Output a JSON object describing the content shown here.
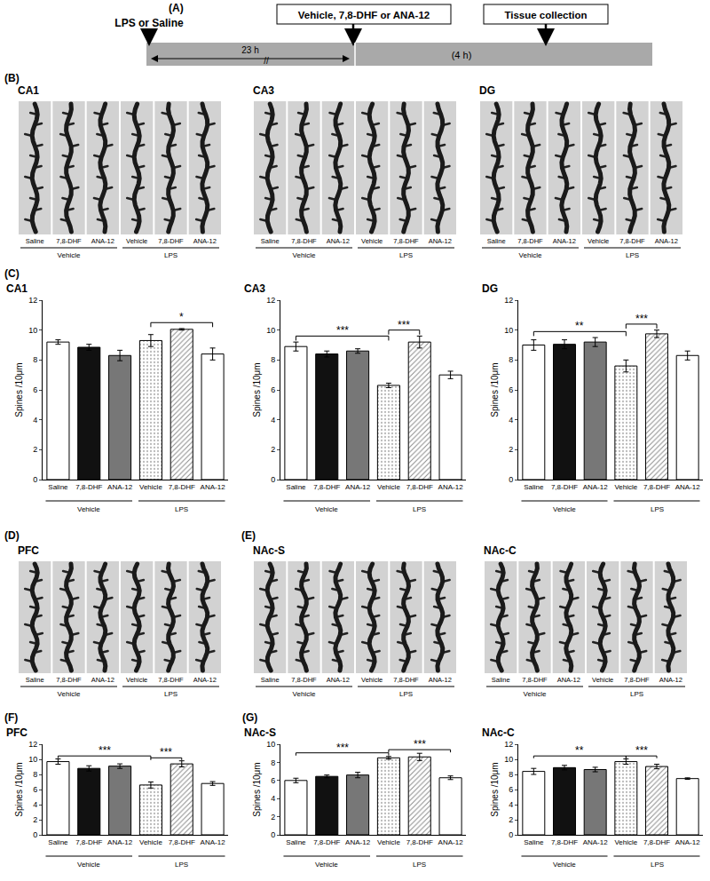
{
  "figure": {
    "timeline": {
      "panel": "(A)",
      "start": "LPS or Saline",
      "treatment": "Vehicle, 7,8-DHF or ANA-12",
      "end": "Tissue collection",
      "first_interval": "23 h",
      "break_mark": "//",
      "second_interval": "(4 h)"
    },
    "image_panels": [
      {
        "panel": "(B)",
        "regions": [
          {
            "title": "CA1",
            "labels": [
              "Saline",
              "7,8-DHF",
              "ANA-12",
              "Vehicle",
              "7,8-DHF",
              "ANA-12"
            ],
            "groups": [
              "Vehicle",
              "LPS"
            ]
          },
          {
            "title": "CA3",
            "labels": [
              "Saline",
              "7,8-DHF",
              "ANA-12",
              "Vehicle",
              "7,8-DHF",
              "ANA-12"
            ],
            "groups": [
              "Vehicle",
              "LPS"
            ]
          },
          {
            "title": "DG",
            "labels": [
              "Saline",
              "7,8-DHF",
              "ANA-12",
              "Vehicle",
              "7,8-DHF",
              "ANA-12"
            ],
            "groups": [
              "Vehicle",
              "LPS"
            ]
          }
        ]
      },
      {
        "panel": "(D)",
        "regions": [
          {
            "title": "PFC",
            "labels": [
              "Saline",
              "7,8-DHF",
              "ANA-12",
              "Vehicle",
              "7,8-DHF",
              "ANA-12"
            ],
            "groups": [
              "Vehicle",
              "LPS"
            ]
          }
        ]
      },
      {
        "panel": "(E)",
        "regions": [
          {
            "title": "NAc-S",
            "labels": [
              "Saline",
              "7,8-DHF",
              "ANA-12",
              "Vehicle",
              "7,8-DHF",
              "ANA-12"
            ],
            "groups": [
              "Vehicle",
              "LPS"
            ]
          },
          {
            "title": "NAc-C",
            "labels": [
              "Saline",
              "7,8-DHF",
              "ANA-12",
              "Vehicle",
              "7,8-DHF",
              "ANA-12"
            ],
            "groups": [
              "Vehicle",
              "LPS"
            ]
          }
        ]
      }
    ]
  },
  "chart_data": [
    {
      "type": "bar",
      "panel": "(C)",
      "title": "CA1",
      "ylabel": "Spines /10μm",
      "categories": [
        "Saline",
        "7,8-DHF",
        "ANA-12",
        "Vehicle",
        "7,8-DHF",
        "ANA-12"
      ],
      "groups": [
        {
          "label": "Vehicle",
          "from": 0,
          "to": 2
        },
        {
          "label": "LPS",
          "from": 3,
          "to": 5
        }
      ],
      "values": [
        9.2,
        8.85,
        8.3,
        9.3,
        10.05,
        8.4
      ],
      "errors": [
        0.15,
        0.2,
        0.35,
        0.4,
        0.05,
        0.4
      ],
      "colors": [
        "#ffffff",
        "#111111",
        "#777777",
        "#bbbbbb",
        "#8c8c8c",
        "#ffffff"
      ],
      "ylim": [
        0,
        12
      ],
      "yticks": [
        0,
        2,
        4,
        6,
        8,
        10,
        12
      ],
      "significance": [
        {
          "from": 3,
          "to": 5,
          "label": "*"
        }
      ]
    },
    {
      "type": "bar",
      "title": "CA3",
      "ylabel": "Spines /10μm",
      "categories": [
        "Saline",
        "7,8-DHF",
        "ANA-12",
        "Vehicle",
        "7,8-DHF",
        "ANA-12"
      ],
      "groups": [
        {
          "label": "Vehicle",
          "from": 0,
          "to": 2
        },
        {
          "label": "LPS",
          "from": 3,
          "to": 5
        }
      ],
      "values": [
        8.9,
        8.4,
        8.6,
        6.3,
        9.2,
        7.0
      ],
      "errors": [
        0.3,
        0.2,
        0.15,
        0.15,
        0.4,
        0.25
      ],
      "colors": [
        "#ffffff",
        "#111111",
        "#777777",
        "#bbbbbb",
        "#8c8c8c",
        "#ffffff"
      ],
      "ylim": [
        0,
        12
      ],
      "yticks": [
        0,
        2,
        4,
        6,
        8,
        10,
        12
      ],
      "significance": [
        {
          "from": 0,
          "to": 3,
          "label": "***"
        },
        {
          "from": 3,
          "to": 4,
          "label": "***"
        }
      ]
    },
    {
      "type": "bar",
      "title": "DG",
      "ylabel": "Spines /10μm",
      "categories": [
        "Saline",
        "7,8-DHF",
        "ANA-12",
        "Vehicle",
        "7,8-DHF",
        "ANA-12"
      ],
      "groups": [
        {
          "label": "Vehicle",
          "from": 0,
          "to": 2
        },
        {
          "label": "LPS",
          "from": 3,
          "to": 5
        }
      ],
      "values": [
        9.0,
        9.05,
        9.2,
        7.6,
        9.75,
        8.3
      ],
      "errors": [
        0.35,
        0.3,
        0.3,
        0.4,
        0.25,
        0.3
      ],
      "colors": [
        "#ffffff",
        "#111111",
        "#777777",
        "#bbbbbb",
        "#8c8c8c",
        "#ffffff"
      ],
      "ylim": [
        0,
        12
      ],
      "yticks": [
        0,
        2,
        4,
        6,
        8,
        10,
        12
      ],
      "significance": [
        {
          "from": 0,
          "to": 3,
          "label": "**"
        },
        {
          "from": 3,
          "to": 4,
          "label": "***"
        }
      ]
    },
    {
      "type": "bar",
      "panel": "(F)",
      "title": "PFC",
      "ylabel": "Spines /10μm",
      "categories": [
        "Saline",
        "7,8-DHF",
        "ANA-12",
        "Vehicle",
        "7,8-DHF",
        "ANA-12"
      ],
      "groups": [
        {
          "label": "Vehicle",
          "from": 0,
          "to": 2
        },
        {
          "label": "LPS",
          "from": 3,
          "to": 5
        }
      ],
      "values": [
        9.7,
        8.8,
        9.1,
        6.6,
        9.4,
        6.8
      ],
      "errors": [
        0.35,
        0.35,
        0.3,
        0.4,
        0.4,
        0.25
      ],
      "colors": [
        "#ffffff",
        "#111111",
        "#777777",
        "#bbbbbb",
        "#8c8c8c",
        "#ffffff"
      ],
      "ylim": [
        0,
        12
      ],
      "yticks": [
        0,
        2,
        4,
        6,
        8,
        10,
        12
      ],
      "significance": [
        {
          "from": 0,
          "to": 3,
          "label": "***"
        },
        {
          "from": 3,
          "to": 4,
          "label": "***"
        }
      ]
    },
    {
      "type": "bar",
      "panel": "(G)",
      "title": "NAc-S",
      "ylabel": "Spines /10μm",
      "categories": [
        "Saline",
        "7,8-DHF",
        "ANA-12",
        "Vehicle",
        "7,8-DHF",
        "ANA-12"
      ],
      "groups": [
        {
          "label": "Vehicle",
          "from": 0,
          "to": 2
        },
        {
          "label": "LPS",
          "from": 3,
          "to": 5
        }
      ],
      "values": [
        6.0,
        6.45,
        6.6,
        8.5,
        8.6,
        6.3
      ],
      "errors": [
        0.25,
        0.15,
        0.3,
        0.15,
        0.4,
        0.2
      ],
      "colors": [
        "#ffffff",
        "#111111",
        "#777777",
        "#bbbbbb",
        "#8c8c8c",
        "#ffffff"
      ],
      "ylim": [
        0,
        10
      ],
      "yticks": [
        0,
        2,
        4,
        6,
        8,
        10
      ],
      "significance": [
        {
          "from": 0,
          "to": 3,
          "label": "***"
        },
        {
          "from": 3,
          "to": 5,
          "label": "***"
        }
      ]
    },
    {
      "type": "bar",
      "title": "NAc-C",
      "ylabel": "Spines /10μm",
      "categories": [
        "Saline",
        "7,8-DHF",
        "ANA-12",
        "Vehicle",
        "7,8-DHF",
        "ANA-12"
      ],
      "groups": [
        {
          "label": "Vehicle",
          "from": 0,
          "to": 2
        },
        {
          "label": "LPS",
          "from": 3,
          "to": 5
        }
      ],
      "values": [
        8.4,
        8.9,
        8.65,
        9.7,
        9.05,
        7.45
      ],
      "errors": [
        0.4,
        0.3,
        0.3,
        0.35,
        0.3,
        0.1
      ],
      "colors": [
        "#ffffff",
        "#111111",
        "#777777",
        "#bbbbbb",
        "#8c8c8c",
        "#ffffff"
      ],
      "ylim": [
        0,
        12
      ],
      "yticks": [
        0,
        2,
        4,
        6,
        8,
        10,
        12
      ],
      "significance": [
        {
          "from": 0,
          "to": 3,
          "label": "**"
        },
        {
          "from": 3,
          "to": 4,
          "label": "***"
        }
      ]
    }
  ]
}
